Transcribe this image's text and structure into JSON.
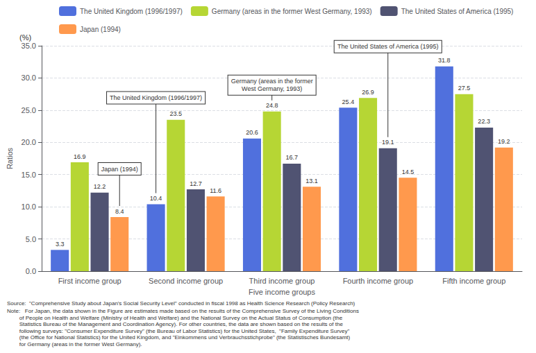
{
  "chart_data": {
    "type": "bar",
    "categories": [
      "First income group",
      "Second income group",
      "Third income group",
      "Fourth income group",
      "Fifth income group"
    ],
    "series": [
      {
        "name": "The United Kingdom (1996/1997)",
        "values": [
          3.3,
          10.4,
          20.6,
          25.4,
          31.8
        ]
      },
      {
        "name": "Germany (areas in the former West Germany, 1993)",
        "values": [
          16.9,
          23.5,
          24.8,
          26.9,
          27.5
        ]
      },
      {
        "name": "The United States of America (1995)",
        "values": [
          12.2,
          12.7,
          16.7,
          19.1,
          22.3
        ]
      },
      {
        "name": "Japan (1994)",
        "values": [
          8.4,
          11.6,
          13.1,
          14.5,
          19.2
        ]
      }
    ],
    "xlabel": "Five income groups",
    "ylabel": "Ratios",
    "yunit": "(%)",
    "ylim": [
      0,
      35.0
    ],
    "yticks": [
      {
        "value": 0.0,
        "label": "0.0"
      },
      {
        "value": 5.0,
        "label": "5.0"
      },
      {
        "value": 10.0,
        "label": "10.0"
      },
      {
        "value": 15.0,
        "label": "15.0"
      },
      {
        "value": 20.0,
        "label": "20.0"
      },
      {
        "value": 25.0,
        "label": "25.0"
      },
      {
        "value": 30.0,
        "label": "30.0"
      },
      {
        "value": 35.0,
        "label": "35.0"
      }
    ],
    "grid": true,
    "legend": "top",
    "data_labels": true,
    "annotations": [
      {
        "text": "Japan (1994)",
        "series": "Japan (1994)",
        "category": "First income group"
      },
      {
        "text": "The United Kingdom (1996/1997)",
        "series": "The United Kingdom (1996/1997)",
        "category": "Second income group"
      },
      {
        "text": "Germany (areas in the former\nWest Germany, 1993)",
        "series": "Germany (areas in the former West Germany, 1993)",
        "category": "Third income group"
      },
      {
        "text": "The United States of America (1995)",
        "series": "The United States of America (1995)",
        "category": "Fourth income group"
      }
    ],
    "source": "Source:  \"Comprehensive Study about Japan's Social Security Level\" conducted in fiscal 1998 as Health Science Research (Policy Research)",
    "note": "Note:   For Japan, the data shown in the Figure are estimates made based on the results of the Comprehensive Survey of the Living Conditions\n        of People on Health and Welfare (Ministry of Health and Welfare) and the National Survey on the Actual Status of Consumption (the\n        Statistics Bureau of the Management and Coordination Agency). For other countries, the data are shown based on the results of the\n        following surveys: \"Consumer Expenditure Survey\" (the Bureau of Labor Statistics) for the United States,  \"Family Expenditure Survey\"\n        (the Office for National Statistics) for the United Kingdom, and \"Einkommens und Verbrauchsstichprobe\" (the Statistisches Bundesamt)\n        for Germany (areas in the former West Germany)."
  }
}
